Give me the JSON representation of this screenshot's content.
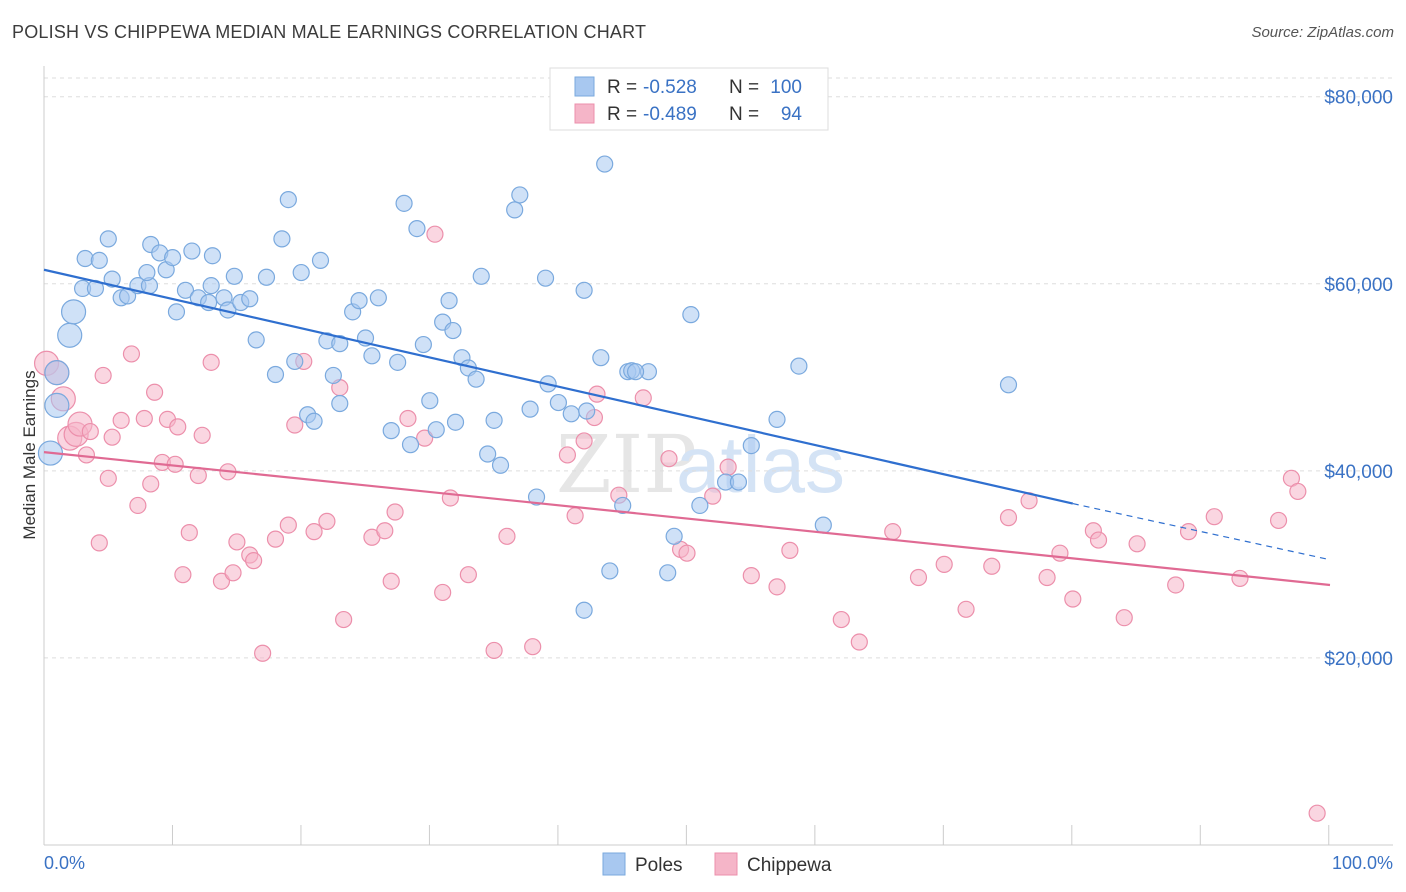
{
  "title": "POLISH VS CHIPPEWA MEDIAN MALE EARNINGS CORRELATION CHART",
  "source": "Source: ZipAtlas.com",
  "watermark": {
    "zip": "ZIP",
    "atlas": "atlas"
  },
  "colors": {
    "poles_fill": "#a8c8f0",
    "poles_stroke": "#7aa9de",
    "poles_line": "#2f6fcf",
    "chippewa_fill": "#f5b5c8",
    "chippewa_stroke": "#ec8fab",
    "chippewa_line": "#e06a93",
    "axis_text": "#3a72c4",
    "grid": "#dddddd"
  },
  "chart_data": {
    "type": "scatter",
    "title": "POLISH VS CHIPPEWA MEDIAN MALE EARNINGS CORRELATION CHART",
    "xlabel": "",
    "ylabel": "Median Male Earnings",
    "xlim": [
      0,
      100
    ],
    "ylim": [
      0,
      82000
    ],
    "x_tick_labels": {
      "0": "0.0%",
      "100": "100.0%"
    },
    "y_ticks": [
      20000,
      40000,
      60000,
      80000
    ],
    "y_tick_labels": [
      "$20,000",
      "$40,000",
      "$60,000",
      "$80,000"
    ],
    "legend": {
      "placement": "top-center",
      "rows": [
        {
          "r_label": "R =",
          "r_value": "-0.528",
          "n_label": "N =",
          "n_value": "100"
        },
        {
          "r_label": "R =",
          "r_value": "-0.489",
          "n_label": "N =",
          "n_value": "94"
        }
      ]
    },
    "bottom_legend": [
      "Poles",
      "Chippewa"
    ],
    "series": [
      {
        "name": "Poles",
        "r": -0.528,
        "n": 100,
        "trend": {
          "x0": 0,
          "y0": 61500,
          "x1": 80,
          "y1": 36500,
          "dash_to_x": 100,
          "dash_to_y": 30500
        },
        "points": [
          [
            0.5,
            41900
          ],
          [
            1,
            50500
          ],
          [
            1,
            47000
          ],
          [
            2,
            54500
          ],
          [
            2.3,
            57000
          ],
          [
            3,
            59500
          ],
          [
            3.2,
            62700
          ],
          [
            4,
            59500
          ],
          [
            4.3,
            62500
          ],
          [
            5,
            64800
          ],
          [
            5.3,
            60500
          ],
          [
            6,
            58500
          ],
          [
            6.5,
            58700
          ],
          [
            7.3,
            59800
          ],
          [
            8.2,
            59800
          ],
          [
            8,
            61200
          ],
          [
            8.3,
            64200
          ],
          [
            9,
            63300
          ],
          [
            9.5,
            61500
          ],
          [
            10,
            62800
          ],
          [
            10.3,
            57000
          ],
          [
            11,
            59300
          ],
          [
            11.5,
            63500
          ],
          [
            12,
            58500
          ],
          [
            12.8,
            58000
          ],
          [
            13,
            59800
          ],
          [
            13.1,
            63000
          ],
          [
            14,
            58500
          ],
          [
            14.3,
            57200
          ],
          [
            14.8,
            60800
          ],
          [
            15.3,
            58000
          ],
          [
            16,
            58400
          ],
          [
            16.5,
            54000
          ],
          [
            17.3,
            60700
          ],
          [
            18,
            50300
          ],
          [
            18.5,
            64800
          ],
          [
            19,
            69000
          ],
          [
            19.5,
            51700
          ],
          [
            20,
            61200
          ],
          [
            20.5,
            46000
          ],
          [
            21,
            45300
          ],
          [
            21.5,
            62500
          ],
          [
            22,
            53900
          ],
          [
            22.5,
            50200
          ],
          [
            23,
            53600
          ],
          [
            23,
            47200
          ],
          [
            24,
            57000
          ],
          [
            24.5,
            58200
          ],
          [
            25,
            54200
          ],
          [
            25.5,
            52300
          ],
          [
            26,
            58500
          ],
          [
            27,
            44300
          ],
          [
            27.5,
            51600
          ],
          [
            28,
            68600
          ],
          [
            28.5,
            42800
          ],
          [
            29,
            65900
          ],
          [
            29.5,
            53500
          ],
          [
            30,
            47500
          ],
          [
            30.5,
            44400
          ],
          [
            31,
            55900
          ],
          [
            31.5,
            58200
          ],
          [
            31.8,
            55000
          ],
          [
            32,
            45200
          ],
          [
            32.5,
            52100
          ],
          [
            33,
            51000
          ],
          [
            33.6,
            49800
          ],
          [
            34,
            60800
          ],
          [
            34.5,
            41800
          ],
          [
            35,
            45400
          ],
          [
            35.5,
            40600
          ],
          [
            36.6,
            67900
          ],
          [
            37,
            69500
          ],
          [
            37.8,
            46600
          ],
          [
            38.3,
            37200
          ],
          [
            39,
            60600
          ],
          [
            39.2,
            49300
          ],
          [
            40,
            47300
          ],
          [
            41,
            46100
          ],
          [
            42,
            59300
          ],
          [
            42.2,
            46400
          ],
          [
            43.3,
            52100
          ],
          [
            43.6,
            72800
          ],
          [
            44,
            29300
          ],
          [
            45,
            36300
          ],
          [
            45.4,
            50600
          ],
          [
            45.7,
            50700
          ],
          [
            47,
            50600
          ],
          [
            48.5,
            29100
          ],
          [
            49,
            33000
          ],
          [
            50.3,
            56700
          ],
          [
            51,
            36300
          ],
          [
            53,
            38800
          ],
          [
            54,
            38800
          ],
          [
            55,
            42700
          ],
          [
            58.7,
            51200
          ],
          [
            60.6,
            34200
          ],
          [
            75,
            49200
          ],
          [
            46,
            50600
          ],
          [
            42,
            25100
          ],
          [
            57,
            45500
          ]
        ]
      },
      {
        "name": "Chippewa",
        "r": -0.489,
        "n": 94,
        "trend": {
          "x0": 0,
          "y0": 42000,
          "x1": 100,
          "y1": 27800
        },
        "points": [
          [
            0.2,
            51500
          ],
          [
            1,
            50500
          ],
          [
            1.5,
            47700
          ],
          [
            2,
            43500
          ],
          [
            2.5,
            43900
          ],
          [
            2.8,
            45000
          ],
          [
            3.3,
            41700
          ],
          [
            3.6,
            44200
          ],
          [
            4.3,
            32300
          ],
          [
            4.6,
            50200
          ],
          [
            5,
            39200
          ],
          [
            5.3,
            43600
          ],
          [
            6,
            45400
          ],
          [
            6.8,
            52500
          ],
          [
            7.3,
            36300
          ],
          [
            7.8,
            45600
          ],
          [
            8.3,
            38600
          ],
          [
            8.6,
            48400
          ],
          [
            9.2,
            40900
          ],
          [
            9.6,
            45500
          ],
          [
            10.2,
            40700
          ],
          [
            10.4,
            44700
          ],
          [
            10.8,
            28900
          ],
          [
            11.3,
            33400
          ],
          [
            12,
            39500
          ],
          [
            12.3,
            43800
          ],
          [
            13,
            51600
          ],
          [
            13.8,
            28200
          ],
          [
            14.3,
            39900
          ],
          [
            14.7,
            29100
          ],
          [
            15,
            32400
          ],
          [
            16,
            31000
          ],
          [
            16.3,
            30400
          ],
          [
            17,
            20500
          ],
          [
            18,
            32700
          ],
          [
            19,
            34200
          ],
          [
            19.5,
            44900
          ],
          [
            20.2,
            51700
          ],
          [
            21,
            33500
          ],
          [
            22,
            34600
          ],
          [
            23,
            48900
          ],
          [
            23.3,
            24100
          ],
          [
            25.5,
            32900
          ],
          [
            26.5,
            33600
          ],
          [
            27,
            28200
          ],
          [
            27.3,
            35600
          ],
          [
            28.3,
            45600
          ],
          [
            29.6,
            43500
          ],
          [
            30.4,
            65300
          ],
          [
            31,
            27000
          ],
          [
            31.6,
            37100
          ],
          [
            33,
            28900
          ],
          [
            35,
            20800
          ],
          [
            36,
            33000
          ],
          [
            40.7,
            41700
          ],
          [
            41.3,
            35200
          ],
          [
            42,
            43200
          ],
          [
            42.8,
            45700
          ],
          [
            43,
            48200
          ],
          [
            44.7,
            37400
          ],
          [
            46.6,
            47800
          ],
          [
            48.6,
            41300
          ],
          [
            49.5,
            31600
          ],
          [
            50,
            31200
          ],
          [
            52,
            37300
          ],
          [
            53.2,
            40400
          ],
          [
            55,
            28800
          ],
          [
            57,
            27600
          ],
          [
            58,
            31500
          ],
          [
            62,
            24100
          ],
          [
            63.4,
            21700
          ],
          [
            66,
            33500
          ],
          [
            68,
            28600
          ],
          [
            70,
            30000
          ],
          [
            71.7,
            25200
          ],
          [
            73.7,
            29800
          ],
          [
            75,
            35000
          ],
          [
            76.6,
            36800
          ],
          [
            78,
            28600
          ],
          [
            79,
            31200
          ],
          [
            80,
            26300
          ],
          [
            81.6,
            33600
          ],
          [
            82,
            32600
          ],
          [
            84,
            24300
          ],
          [
            85,
            32200
          ],
          [
            88,
            27800
          ],
          [
            89,
            33500
          ],
          [
            91,
            35100
          ],
          [
            93,
            28500
          ],
          [
            96,
            34700
          ],
          [
            97,
            39200
          ],
          [
            97.5,
            37800
          ],
          [
            99,
            3400
          ],
          [
            38,
            21200
          ]
        ]
      }
    ]
  }
}
